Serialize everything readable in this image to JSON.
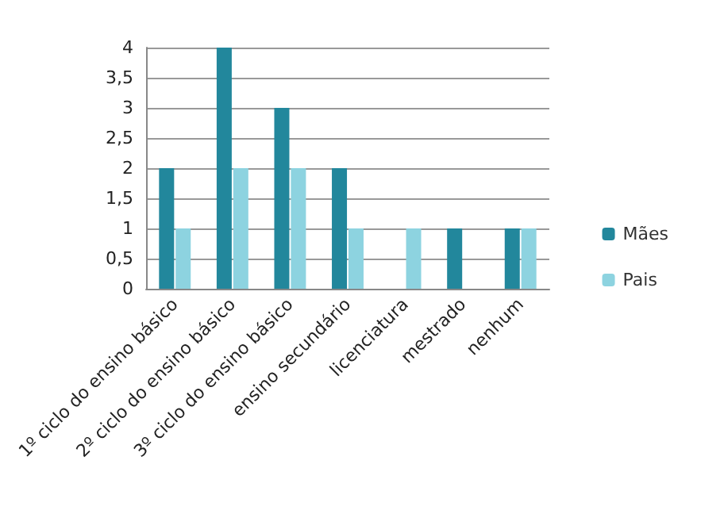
{
  "chart_data": {
    "type": "bar",
    "categories": [
      "1º ciclo do ensino básico",
      "2º ciclo do ensino básico",
      "3º ciclo do ensino básico",
      "ensino secundário",
      "licenciatura",
      "mestrado",
      "nenhum"
    ],
    "series": [
      {
        "name": "Mães",
        "color": "#22879c",
        "values": [
          2,
          4,
          3,
          2,
          0,
          1,
          1
        ]
      },
      {
        "name": "Pais",
        "color": "#8dd3e0",
        "values": [
          1,
          2,
          2,
          1,
          1,
          0,
          1
        ]
      }
    ],
    "ylim": [
      0,
      4
    ],
    "yticks": [
      0,
      {
        "value": 0.5,
        "label": "0,5"
      },
      1,
      {
        "value": 1.5,
        "label": "1,5"
      },
      2,
      {
        "value": 2.5,
        "label": "2,5"
      },
      3,
      {
        "value": 3.5,
        "label": "3,5"
      },
      4
    ],
    "grid": "y",
    "legend": "right"
  }
}
